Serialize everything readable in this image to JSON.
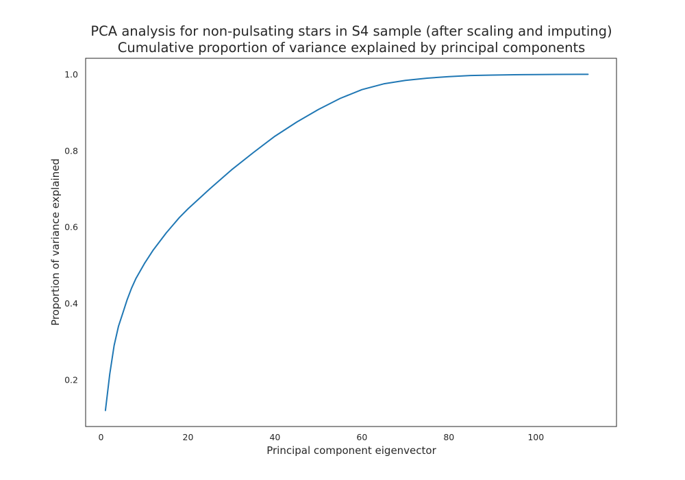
{
  "chart_data": {
    "type": "line",
    "title": "PCA analysis for non-pulsating stars in S4 sample (after scaling and imputing)",
    "subtitle": "Cumulative proportion of variance explained by principal components",
    "xlabel": "Principal component eigenvector",
    "ylabel": "Proportion of variance explained",
    "xlim": [
      -3.55,
      118.55
    ],
    "ylim": [
      0.078,
      1.042
    ],
    "xticks": [
      0,
      20,
      40,
      60,
      80,
      100
    ],
    "yticks": [
      0.2,
      0.4,
      0.6,
      0.8,
      1.0
    ],
    "xtick_labels": [
      "0",
      "20",
      "40",
      "60",
      "80",
      "100"
    ],
    "ytick_labels": [
      "0.2",
      "0.4",
      "0.6",
      "0.8",
      "1.0"
    ],
    "grid": false,
    "series": [
      {
        "color": "#1f77b4",
        "x": [
          1,
          2,
          3,
          4,
          5,
          6,
          7,
          8,
          10,
          12,
          15,
          18,
          20,
          25,
          30,
          35,
          40,
          45,
          50,
          55,
          60,
          65,
          70,
          75,
          80,
          85,
          90,
          95,
          100,
          105,
          110,
          112
        ],
        "y": [
          0.12,
          0.215,
          0.29,
          0.34,
          0.375,
          0.41,
          0.44,
          0.465,
          0.505,
          0.54,
          0.585,
          0.625,
          0.648,
          0.7,
          0.75,
          0.795,
          0.838,
          0.875,
          0.908,
          0.937,
          0.96,
          0.975,
          0.984,
          0.99,
          0.994,
          0.997,
          0.998,
          0.999,
          0.9995,
          0.9998,
          1.0,
          1.0
        ]
      }
    ]
  }
}
